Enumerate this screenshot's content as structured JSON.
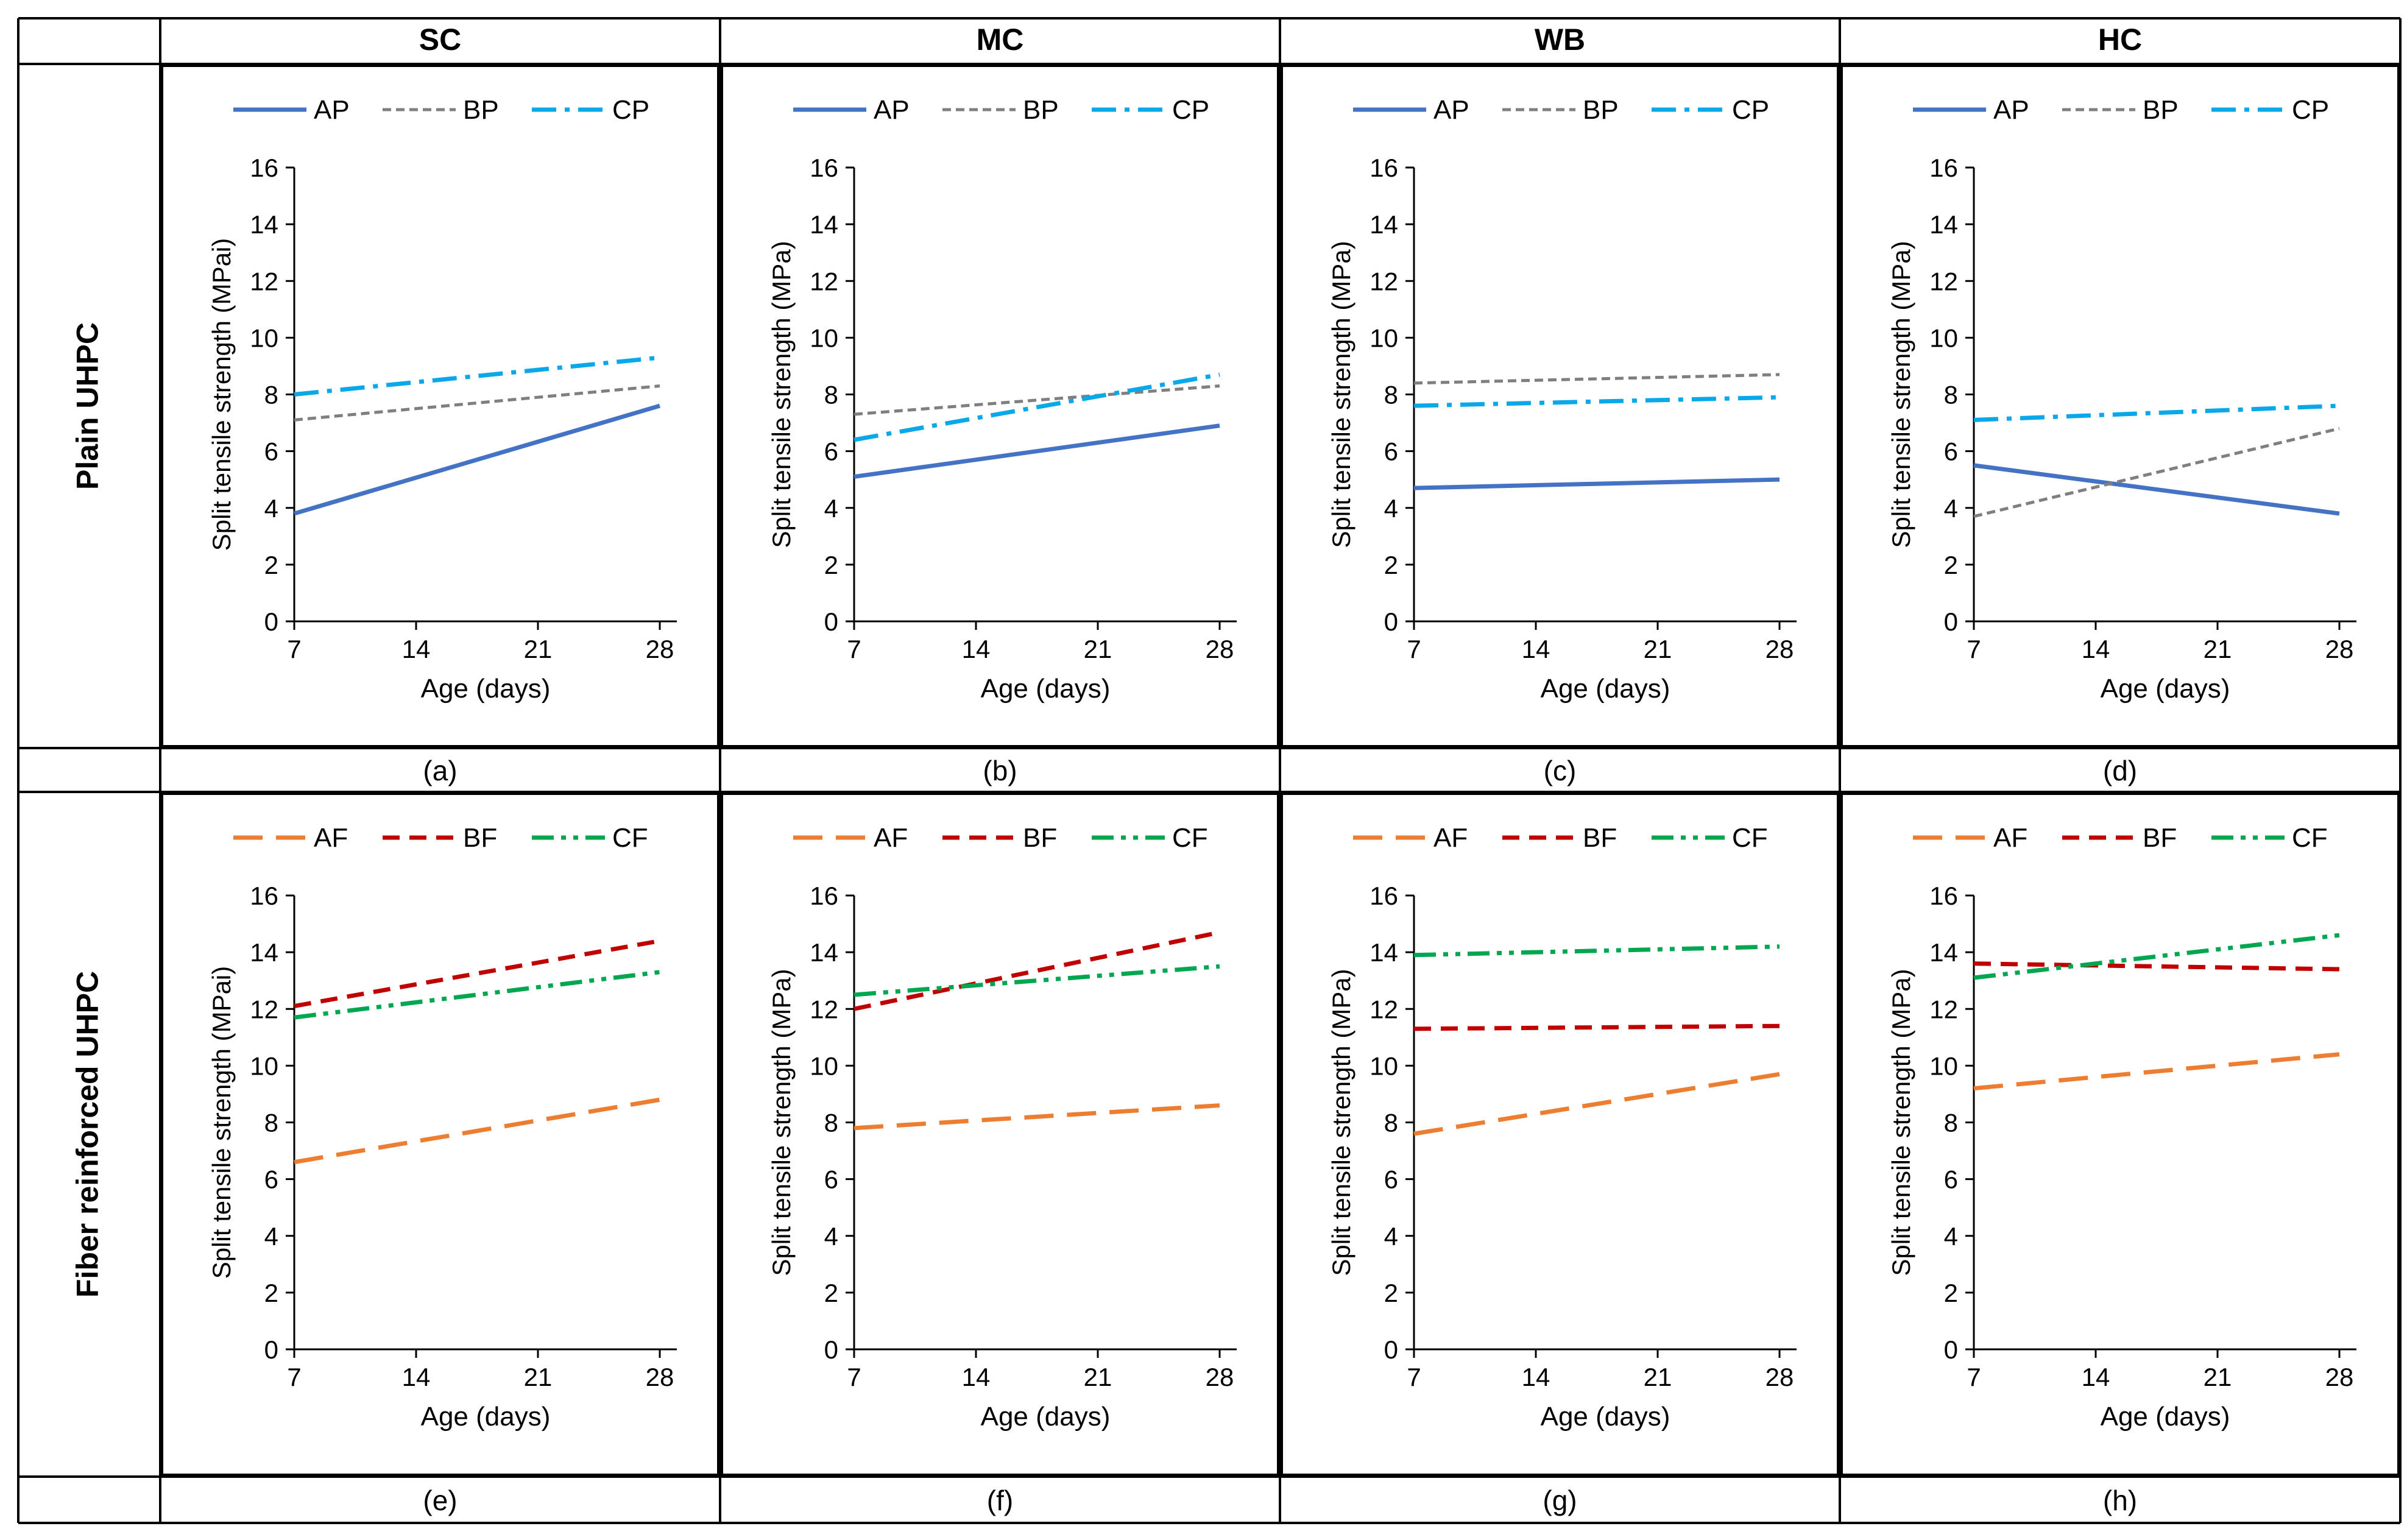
{
  "columns": [
    "SC",
    "MC",
    "WB",
    "HC"
  ],
  "rows": [
    "Plain UHPC",
    "Fiber reinforced UHPC"
  ],
  "panel_labels": [
    "(a)",
    "(b)",
    "(c)",
    "(d)",
    "(e)",
    "(f)",
    "(g)",
    "(h)"
  ],
  "colors": {
    "AP": "#4472C4",
    "BP": "#7F7F7F",
    "CP": "#0AA8E8",
    "AF": "#ED7D31",
    "BF": "#C00000",
    "CF": "#00A650",
    "border": "#000000",
    "axis": "#000000"
  },
  "chart_data": [
    {
      "type": "line",
      "panel": "(a)",
      "column": "SC",
      "row": "Plain UHPC",
      "x": [
        7,
        28
      ],
      "xlabel": "Age (days)",
      "ylabel": "Split tensile strength (MPai)",
      "xticks": [
        7,
        14,
        21,
        28
      ],
      "yticks": [
        0,
        2,
        4,
        6,
        8,
        10,
        12,
        14,
        16
      ],
      "ylim": [
        0,
        16
      ],
      "legend": "top",
      "series": [
        {
          "name": "AP",
          "values": [
            3.8,
            7.6
          ]
        },
        {
          "name": "BP",
          "values": [
            7.1,
            8.3
          ]
        },
        {
          "name": "CP",
          "values": [
            8.0,
            9.3
          ]
        }
      ]
    },
    {
      "type": "line",
      "panel": "(b)",
      "column": "MC",
      "row": "Plain UHPC",
      "x": [
        7,
        28
      ],
      "xlabel": "Age (days)",
      "ylabel": "Split tensile strength (MPa)",
      "xticks": [
        7,
        14,
        21,
        28
      ],
      "yticks": [
        0,
        2,
        4,
        6,
        8,
        10,
        12,
        14,
        16
      ],
      "ylim": [
        0,
        16
      ],
      "legend": "top",
      "series": [
        {
          "name": "AP",
          "values": [
            5.1,
            6.9
          ]
        },
        {
          "name": "BP",
          "values": [
            7.3,
            8.3
          ]
        },
        {
          "name": "CP",
          "values": [
            6.4,
            8.7
          ]
        }
      ]
    },
    {
      "type": "line",
      "panel": "(c)",
      "column": "WB",
      "row": "Plain UHPC",
      "x": [
        7,
        28
      ],
      "xlabel": "Age (days)",
      "ylabel": "Split tensile strength (MPa)",
      "xticks": [
        7,
        14,
        21,
        28
      ],
      "yticks": [
        0,
        2,
        4,
        6,
        8,
        10,
        12,
        14,
        16
      ],
      "ylim": [
        0,
        16
      ],
      "legend": "top",
      "series": [
        {
          "name": "AP",
          "values": [
            4.7,
            5.0
          ]
        },
        {
          "name": "BP",
          "values": [
            8.4,
            8.7
          ]
        },
        {
          "name": "CP",
          "values": [
            7.6,
            7.9
          ]
        }
      ]
    },
    {
      "type": "line",
      "panel": "(d)",
      "column": "HC",
      "row": "Plain UHPC",
      "x": [
        7,
        28
      ],
      "xlabel": "Age (days)",
      "ylabel": "Split tensile strength (MPa)",
      "xticks": [
        7,
        14,
        21,
        28
      ],
      "yticks": [
        0,
        2,
        4,
        6,
        8,
        10,
        12,
        14,
        16
      ],
      "ylim": [
        0,
        16
      ],
      "legend": "top",
      "series": [
        {
          "name": "AP",
          "values": [
            5.5,
            3.8
          ]
        },
        {
          "name": "BP",
          "values": [
            3.7,
            6.8
          ]
        },
        {
          "name": "CP",
          "values": [
            7.1,
            7.6
          ]
        }
      ]
    },
    {
      "type": "line",
      "panel": "(e)",
      "column": "SC",
      "row": "Fiber reinforced UHPC",
      "x": [
        7,
        28
      ],
      "xlabel": "Age (days)",
      "ylabel": "Split tensile strength (MPai)",
      "xticks": [
        7,
        14,
        21,
        28
      ],
      "yticks": [
        0,
        2,
        4,
        6,
        8,
        10,
        12,
        14,
        16
      ],
      "ylim": [
        0,
        16
      ],
      "legend": "top",
      "series": [
        {
          "name": "AF",
          "values": [
            6.6,
            8.8
          ]
        },
        {
          "name": "BF",
          "values": [
            12.1,
            14.4
          ]
        },
        {
          "name": "CF",
          "values": [
            11.7,
            13.3
          ]
        }
      ]
    },
    {
      "type": "line",
      "panel": "(f)",
      "column": "MC",
      "row": "Fiber reinforced UHPC",
      "x": [
        7,
        28
      ],
      "xlabel": "Age (days)",
      "ylabel": "Split tensile strength (MPa)",
      "xticks": [
        7,
        14,
        21,
        28
      ],
      "yticks": [
        0,
        2,
        4,
        6,
        8,
        10,
        12,
        14,
        16
      ],
      "ylim": [
        0,
        16
      ],
      "legend": "top",
      "series": [
        {
          "name": "AF",
          "values": [
            7.8,
            8.6
          ]
        },
        {
          "name": "BF",
          "values": [
            12.0,
            14.7
          ]
        },
        {
          "name": "CF",
          "values": [
            12.5,
            13.5
          ]
        }
      ]
    },
    {
      "type": "line",
      "panel": "(g)",
      "column": "WB",
      "row": "Fiber reinforced UHPC",
      "x": [
        7,
        28
      ],
      "xlabel": "Age (days)",
      "ylabel": "Split tensile strength (MPa)",
      "xticks": [
        7,
        14,
        21,
        28
      ],
      "yticks": [
        0,
        2,
        4,
        6,
        8,
        10,
        12,
        14,
        16
      ],
      "ylim": [
        0,
        16
      ],
      "legend": "top",
      "series": [
        {
          "name": "AF",
          "values": [
            7.6,
            9.7
          ]
        },
        {
          "name": "BF",
          "values": [
            11.3,
            11.4
          ]
        },
        {
          "name": "CF",
          "values": [
            13.9,
            14.2
          ]
        }
      ]
    },
    {
      "type": "line",
      "panel": "(h)",
      "column": "HC",
      "row": "Fiber reinforced UHPC",
      "x": [
        7,
        28
      ],
      "xlabel": "Age (days)",
      "ylabel": "Split tensile strength (MPa)",
      "xticks": [
        7,
        14,
        21,
        28
      ],
      "yticks": [
        0,
        2,
        4,
        6,
        8,
        10,
        12,
        14,
        16
      ],
      "ylim": [
        0,
        16
      ],
      "legend": "top",
      "series": [
        {
          "name": "AF",
          "values": [
            9.2,
            10.4
          ]
        },
        {
          "name": "BF",
          "values": [
            13.6,
            13.4
          ]
        },
        {
          "name": "CF",
          "values": [
            13.1,
            14.6
          ]
        }
      ]
    }
  ]
}
